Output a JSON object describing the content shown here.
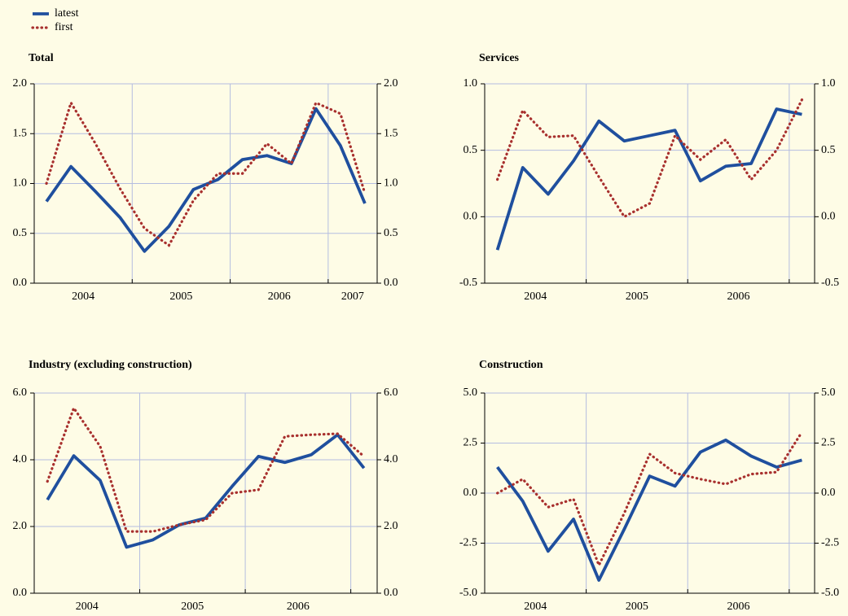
{
  "chart_data": [
    {
      "type": "line",
      "title": "Total",
      "x": [
        2004.125,
        2004.375,
        2004.625,
        2004.875,
        2005.125,
        2005.375,
        2005.625,
        2005.875,
        2006.125,
        2006.375,
        2006.625,
        2006.875,
        2007.125,
        2007.375
      ],
      "xlim": [
        2004,
        2007.5
      ],
      "xticks": [
        {
          "value": 2004.5,
          "label": "2004"
        },
        {
          "value": 2005.5,
          "label": "2005"
        },
        {
          "value": 2006.5,
          "label": "2006"
        },
        {
          "value": 2007.25,
          "label": "2007"
        }
      ],
      "ylim": [
        0,
        2
      ],
      "yticks": [
        {
          "value": 0,
          "label": "0.0"
        },
        0.5,
        {
          "value": 1,
          "label": "1.0"
        },
        1.5,
        {
          "value": 2,
          "label": "2.0"
        }
      ],
      "grid": true,
      "series": [
        {
          "name": "latest",
          "color": "#1f4f9e",
          "style": "solid",
          "values": [
            0.82,
            1.17,
            0.92,
            0.66,
            0.32,
            0.57,
            0.94,
            1.04,
            1.24,
            1.28,
            1.2,
            1.75,
            1.38,
            0.8
          ]
        },
        {
          "name": "first",
          "color": "#a8302e",
          "style": "dotted",
          "values": [
            1.0,
            1.81,
            1.4,
            0.95,
            0.55,
            0.38,
            0.83,
            1.1,
            1.1,
            1.4,
            1.2,
            1.81,
            1.7,
            0.9
          ]
        }
      ]
    },
    {
      "type": "line",
      "title": "Services",
      "x": [
        2004.125,
        2004.375,
        2004.625,
        2004.875,
        2005.125,
        2005.375,
        2005.625,
        2005.875,
        2006.125,
        2006.375,
        2006.625,
        2006.875,
        2007.125
      ],
      "xlim": [
        2004,
        2007.25
      ],
      "xticks": [
        {
          "value": 2004.5,
          "label": "2004"
        },
        {
          "value": 2005.5,
          "label": "2005"
        },
        {
          "value": 2006.5,
          "label": "2006"
        }
      ],
      "ylim": [
        -0.5,
        1
      ],
      "yticks": [
        -0.5,
        {
          "value": 0,
          "label": "0.0"
        },
        0.5,
        {
          "value": 1,
          "label": "1.0"
        }
      ],
      "grid": true,
      "series": [
        {
          "name": "latest",
          "color": "#1f4f9e",
          "style": "solid",
          "values": [
            -0.25,
            0.37,
            0.17,
            0.42,
            0.72,
            0.57,
            0.61,
            0.65,
            0.27,
            0.38,
            0.4,
            0.81,
            0.77
          ]
        },
        {
          "name": "first",
          "color": "#a8302e",
          "style": "dotted",
          "values": [
            0.28,
            0.8,
            0.6,
            0.61,
            0.3,
            0.0,
            0.1,
            0.61,
            0.43,
            0.58,
            0.28,
            0.5,
            0.88
          ]
        }
      ]
    },
    {
      "type": "line",
      "title": "Industry (excluding construction)",
      "x": [
        2004.125,
        2004.375,
        2004.625,
        2004.875,
        2005.125,
        2005.375,
        2005.625,
        2005.875,
        2006.125,
        2006.375,
        2006.625,
        2006.875,
        2007.125
      ],
      "xlim": [
        2004,
        2007.25
      ],
      "xticks": [
        {
          "value": 2004.5,
          "label": "2004"
        },
        {
          "value": 2005.5,
          "label": "2005"
        },
        {
          "value": 2006.5,
          "label": "2006"
        }
      ],
      "ylim": [
        0,
        6
      ],
      "yticks": [
        {
          "value": 0,
          "label": "0.0"
        },
        {
          "value": 2,
          "label": "2.0"
        },
        {
          "value": 4,
          "label": "4.0"
        },
        {
          "value": 6,
          "label": "6.0"
        }
      ],
      "grid": true,
      "series": [
        {
          "name": "latest",
          "color": "#1f4f9e",
          "style": "solid",
          "values": [
            2.8,
            4.12,
            3.38,
            1.38,
            1.6,
            2.05,
            2.25,
            3.2,
            4.1,
            3.92,
            4.15,
            4.75,
            3.75
          ]
        },
        {
          "name": "first",
          "color": "#a8302e",
          "style": "dotted",
          "values": [
            3.35,
            5.55,
            4.4,
            1.85,
            1.85,
            2.05,
            2.2,
            3.0,
            3.1,
            4.7,
            4.75,
            4.78,
            4.1
          ]
        }
      ]
    },
    {
      "type": "line",
      "title": "Construction",
      "x": [
        2004.125,
        2004.375,
        2004.625,
        2004.875,
        2005.125,
        2005.375,
        2005.625,
        2005.875,
        2006.125,
        2006.375,
        2006.625,
        2006.875,
        2007.125
      ],
      "xlim": [
        2004,
        2007.25
      ],
      "xticks": [
        {
          "value": 2004.5,
          "label": "2004"
        },
        {
          "value": 2005.5,
          "label": "2005"
        },
        {
          "value": 2006.5,
          "label": "2006"
        }
      ],
      "ylim": [
        -5,
        5
      ],
      "yticks": [
        {
          "value": -5,
          "label": "-5.0"
        },
        -2.5,
        {
          "value": 0,
          "label": "0.0"
        },
        2.5,
        {
          "value": 5,
          "label": "5.0"
        }
      ],
      "grid": true,
      "series": [
        {
          "name": "latest",
          "color": "#1f4f9e",
          "style": "solid",
          "values": [
            1.3,
            -0.4,
            -2.9,
            -1.3,
            -4.35,
            -1.8,
            0.85,
            0.35,
            2.05,
            2.65,
            1.85,
            1.3,
            1.65
          ]
        },
        {
          "name": "first",
          "color": "#a8302e",
          "style": "dotted",
          "values": [
            0.0,
            0.7,
            -0.7,
            -0.3,
            -3.6,
            -1.0,
            1.95,
            1.0,
            0.7,
            0.45,
            0.95,
            1.05,
            3.05
          ]
        }
      ]
    }
  ]
}
